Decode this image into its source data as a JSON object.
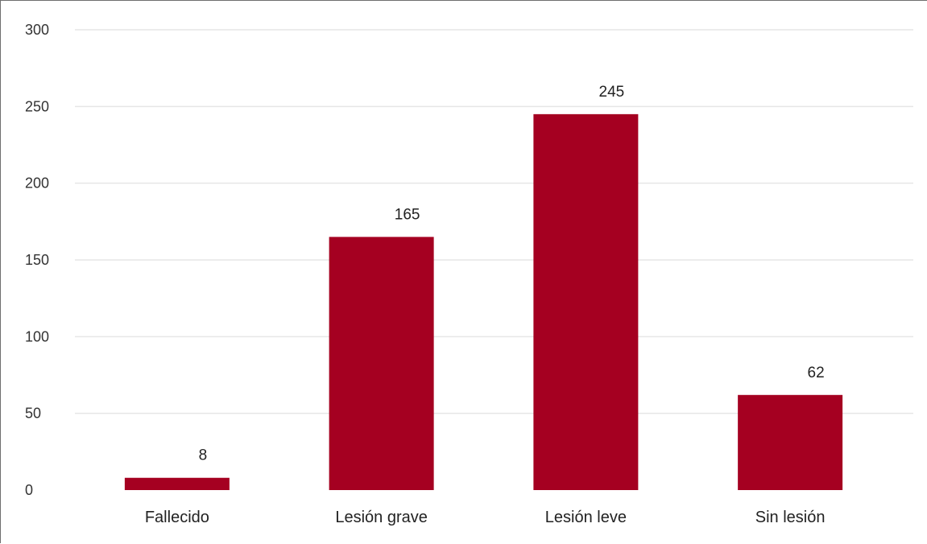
{
  "chart_data": {
    "type": "bar",
    "title": "",
    "xlabel": "",
    "ylabel": "",
    "categories": [
      "Fallecido",
      "Lesión grave",
      "Lesión leve",
      "Sin lesión"
    ],
    "values": [
      8,
      165,
      245,
      62
    ],
    "data_labels": [
      "8",
      "165",
      "245",
      "62"
    ],
    "ylim": [
      0,
      300
    ],
    "yticks": [
      0,
      50,
      100,
      150,
      200,
      250,
      300
    ],
    "ytick_labels": [
      "0",
      "50",
      "100",
      "150",
      "200",
      "250",
      "300"
    ],
    "grid": true,
    "legend": "none",
    "bar_color": "#a50021",
    "grid_color": "#e6e6e6"
  }
}
